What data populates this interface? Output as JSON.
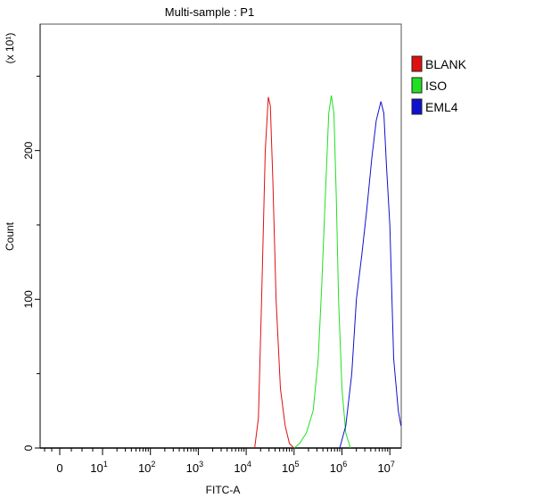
{
  "chart_data": {
    "type": "line",
    "title": "Multi-sample : P1",
    "xlabel": "FITC-A",
    "ylabel": "Count",
    "y_multiplier": "(x 10¹)",
    "x_scale": "log",
    "xlim": [
      0,
      17000000
    ],
    "ylim": [
      0,
      285
    ],
    "x_ticks": [
      {
        "value": 0,
        "base": "0",
        "exp": ""
      },
      {
        "value": 10,
        "base": "10",
        "exp": "1"
      },
      {
        "value": 100,
        "base": "10",
        "exp": "2"
      },
      {
        "value": 1000,
        "base": "10",
        "exp": "3"
      },
      {
        "value": 10000,
        "base": "10",
        "exp": "4"
      },
      {
        "value": 100000,
        "base": "10",
        "exp": "5"
      },
      {
        "value": 1000000,
        "base": "10",
        "exp": "6"
      },
      {
        "value": 10000000,
        "base": "10",
        "exp": "7"
      }
    ],
    "y_ticks": [
      0,
      100,
      200
    ],
    "y_minor_ticks": [
      50,
      150,
      250
    ],
    "grid": false,
    "legend_position": "right",
    "series": [
      {
        "name": "BLANK",
        "color": "#e01010",
        "points": [
          [
            15000,
            0
          ],
          [
            18000,
            20
          ],
          [
            21000,
            100
          ],
          [
            25000,
            200
          ],
          [
            29000,
            236
          ],
          [
            32000,
            230
          ],
          [
            36000,
            180
          ],
          [
            42000,
            100
          ],
          [
            52000,
            40
          ],
          [
            65000,
            15
          ],
          [
            80000,
            3
          ],
          [
            100000,
            0
          ]
        ]
      },
      {
        "name": "ISO",
        "color": "#20e020",
        "points": [
          [
            100000,
            0
          ],
          [
            130000,
            3
          ],
          [
            180000,
            10
          ],
          [
            250000,
            25
          ],
          [
            320000,
            60
          ],
          [
            380000,
            110
          ],
          [
            450000,
            170
          ],
          [
            530000,
            225
          ],
          [
            600000,
            237
          ],
          [
            680000,
            225
          ],
          [
            760000,
            170
          ],
          [
            850000,
            100
          ],
          [
            1000000,
            40
          ],
          [
            1200000,
            10
          ],
          [
            1500000,
            0
          ]
        ]
      },
      {
        "name": "EML4",
        "color": "#1010d0",
        "points": [
          [
            900000,
            0
          ],
          [
            1200000,
            15
          ],
          [
            1600000,
            50
          ],
          [
            2000000,
            100
          ],
          [
            2600000,
            130
          ],
          [
            3300000,
            160
          ],
          [
            4200000,
            195
          ],
          [
            5200000,
            220
          ],
          [
            6500000,
            233
          ],
          [
            7500000,
            225
          ],
          [
            8500000,
            190
          ],
          [
            10000000,
            150
          ],
          [
            12000000,
            60
          ],
          [
            15000000,
            25
          ],
          [
            17000000,
            15
          ]
        ]
      }
    ]
  }
}
